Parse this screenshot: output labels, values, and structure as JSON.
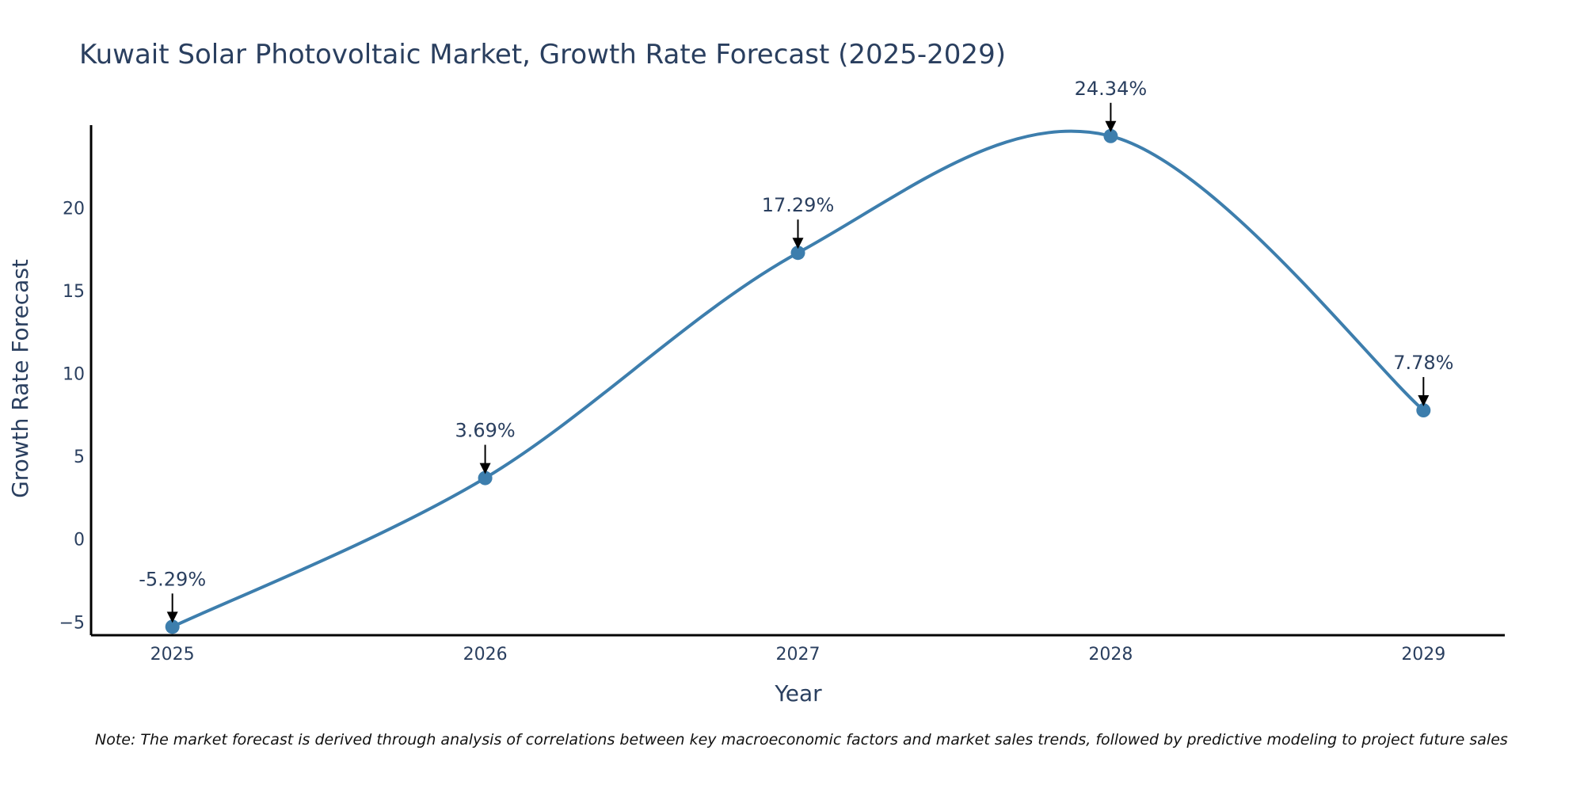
{
  "chart_data": {
    "type": "line",
    "title": "Kuwait Solar Photovoltaic Market, Growth Rate Forecast (2025-2029)",
    "xlabel": "Year",
    "ylabel": "Growth Rate Forecast",
    "categories": [
      "2025",
      "2026",
      "2027",
      "2028",
      "2029"
    ],
    "series": [
      {
        "name": "Growth Rate Forecast",
        "values": [
          -5.29,
          3.69,
          17.29,
          24.34,
          7.78
        ],
        "labels": [
          "-5.29%",
          "3.69%",
          "17.29%",
          "24.34%",
          "7.78%"
        ]
      }
    ],
    "yticks": [
      -5,
      0,
      5,
      10,
      15,
      20
    ],
    "ytick_labels": [
      "−5",
      "0",
      "5",
      "10",
      "15",
      "20"
    ],
    "ylim": [
      -5.8,
      25.0
    ],
    "xlim": [
      2024.74,
      2029.26
    ],
    "line_shape": "spline",
    "grid": false,
    "colors": {
      "line": "#3d7ead",
      "marker": "#3d7ead",
      "arrow": "#000000",
      "axis": "#000000"
    },
    "note": "Note: The market forecast is derived through analysis of correlations between key macroeconomic factors and market sales trends, followed by predictive modeling to project future sales"
  }
}
